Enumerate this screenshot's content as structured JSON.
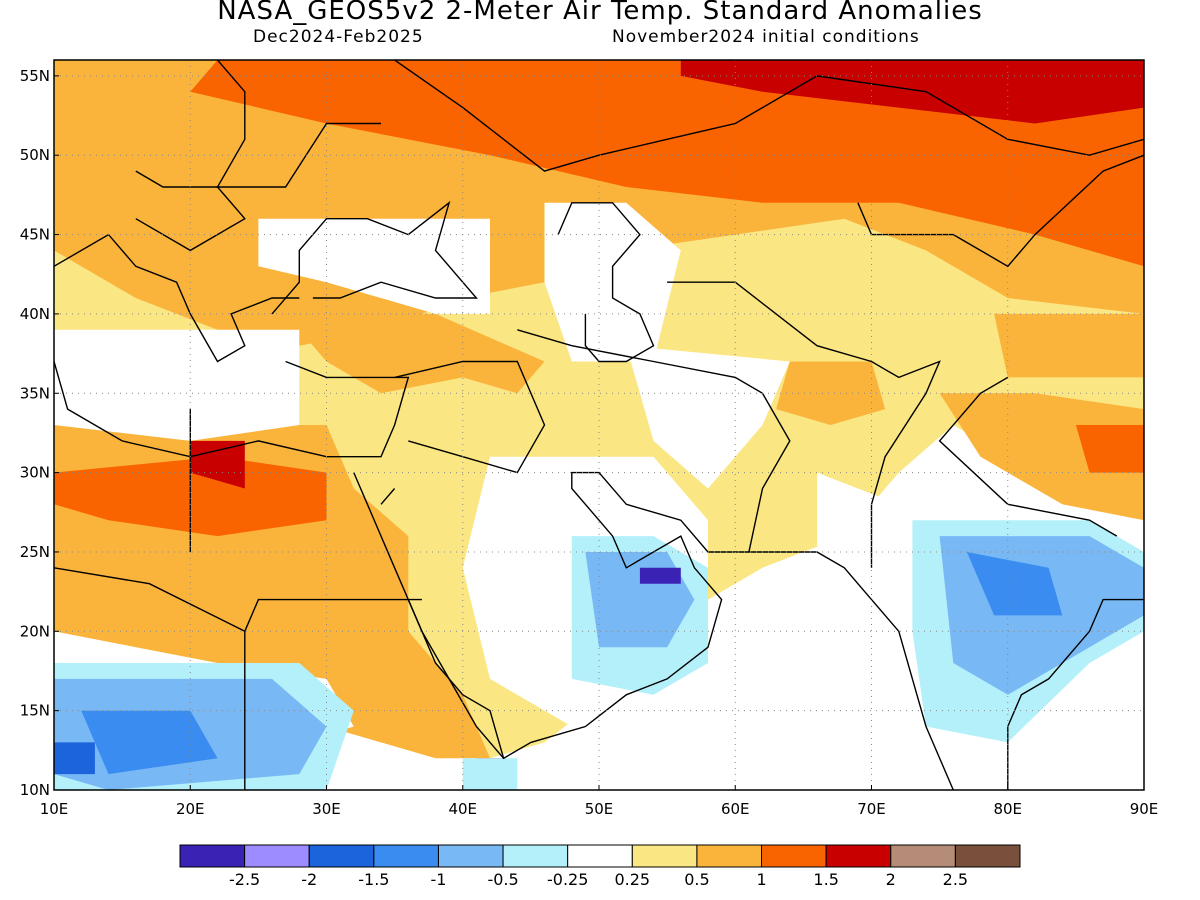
{
  "header": {
    "title": "NASA_GEOS5v2 2-Meter Air Temp. Standard Anomalies",
    "period": "Dec2024-Feb2025",
    "init": "November2024 initial conditions"
  },
  "map": {
    "lon_range": [
      10,
      90
    ],
    "lat_range": [
      10,
      56
    ],
    "lon_ticks": [
      "10E",
      "20E",
      "30E",
      "40E",
      "50E",
      "60E",
      "70E",
      "80E",
      "90E"
    ],
    "lat_ticks": [
      "10N",
      "15N",
      "20N",
      "25N",
      "30N",
      "35N",
      "40N",
      "45N",
      "50N",
      "55N"
    ],
    "grid": "dotted"
  },
  "colorbar": {
    "colors": [
      "#3a22b4",
      "#9d8cff",
      "#1c64dc",
      "#3a8cf0",
      "#78b9f5",
      "#b4f0fa",
      "#ffffff",
      "#fae682",
      "#fab43c",
      "#fa6400",
      "#c80000",
      "#b48c78",
      "#78503c"
    ],
    "labels": [
      "-2.5",
      "-2",
      "-1.5",
      "-1",
      "-0.5",
      "-0.25",
      "0.25",
      "0.5",
      "1",
      "1.5",
      "2",
      "2.5"
    ]
  },
  "palette": {
    "white": "#ffffff",
    "light_orange": "#fae682",
    "orange": "#fab43c",
    "dark_orange": "#fa6400",
    "red": "#c80000",
    "light_blue": "#b4f0fa",
    "blue": "#78b9f5",
    "mid_blue": "#3a8cf0",
    "deep_blue": "#1c64dc",
    "purple": "#3a22b4",
    "coast": "#000000"
  }
}
